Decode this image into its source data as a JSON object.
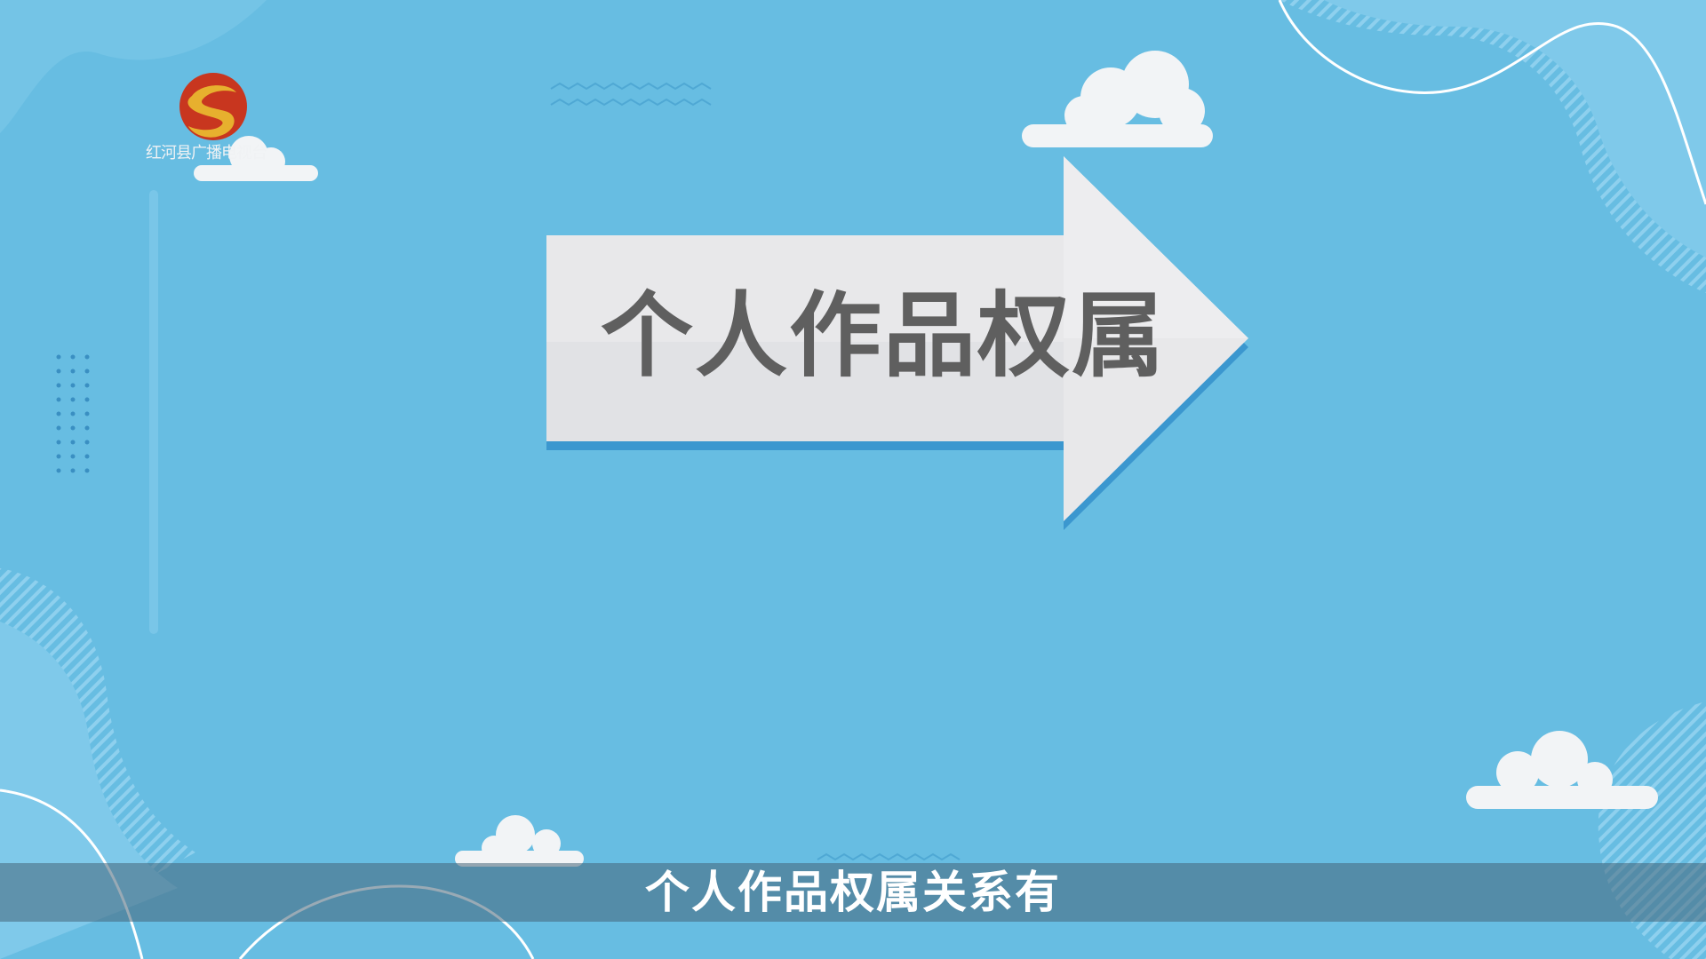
{
  "logo": {
    "name": "station-logo-icon",
    "caption": "红河县广播电视台"
  },
  "title": {
    "text": "个人作品权属"
  },
  "subtitle": {
    "text": "个人作品权属关系有"
  },
  "colors": {
    "background": "#67bde2",
    "arrow_fill": "#e8e8ea",
    "arrow_shadow": "#3b97cf",
    "title_text": "#5f5f5f",
    "subtitle_text": "#ffffff",
    "logo_red": "#c8361f",
    "logo_gold": "#e7b02e"
  }
}
